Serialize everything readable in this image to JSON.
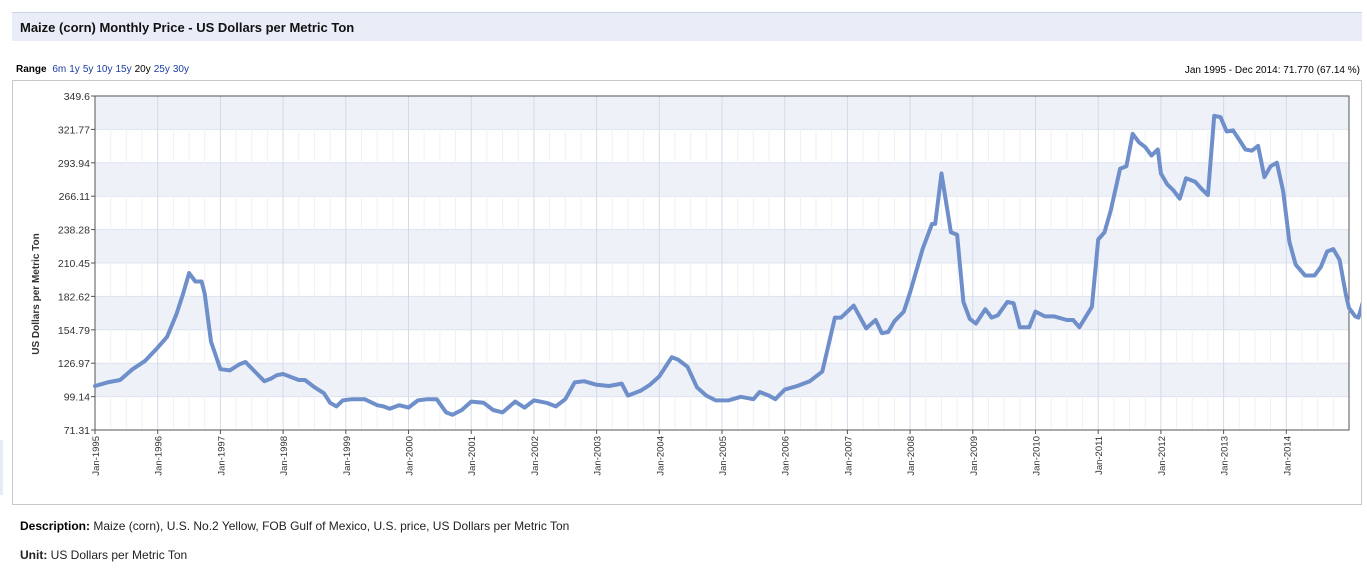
{
  "header": {
    "title": "Maize (corn) Monthly Price - US Dollars per Metric Ton"
  },
  "range": {
    "label": "Range",
    "options": [
      "6m",
      "1y",
      "5y",
      "10y",
      "15y",
      "20y",
      "25y",
      "30y"
    ],
    "selected": "20y"
  },
  "summary": "Jan 1995 - Dec 2014: 71.770 (67.14 %)",
  "colors": {
    "line": "#6f8fcb",
    "band": "#eef1f8",
    "accent_link": "#1a3fa3"
  },
  "chart_data": {
    "type": "line",
    "ylabel": "US Dollars per Metric Ton",
    "xlabel": "",
    "ylim": [
      71.31,
      349.6
    ],
    "xlim": [
      1995.0,
      2015.0
    ],
    "y_ticks": [
      "349.6",
      "321.77",
      "293.94",
      "266.11",
      "238.28",
      "210.45",
      "182.62",
      "154.79",
      "126.97",
      "99.14",
      "71.31"
    ],
    "x_ticks": [
      {
        "label": "Jan-1995",
        "x": 1995
      },
      {
        "label": "Jan-1996",
        "x": 1996
      },
      {
        "label": "Jan-1997",
        "x": 1997
      },
      {
        "label": "Jan-1998",
        "x": 1998
      },
      {
        "label": "Jan-1999",
        "x": 1999
      },
      {
        "label": "Jan-2000",
        "x": 2000
      },
      {
        "label": "Jan-2001",
        "x": 2001
      },
      {
        "label": "Jan-2002",
        "x": 2002
      },
      {
        "label": "Jan-2003",
        "x": 2003
      },
      {
        "label": "Jan-2004",
        "x": 2004
      },
      {
        "label": "Jan-2005",
        "x": 2005
      },
      {
        "label": "Jan-2006",
        "x": 2006
      },
      {
        "label": "Jan-2007",
        "x": 2007
      },
      {
        "label": "Jan-2008",
        "x": 2008
      },
      {
        "label": "Jan-2009",
        "x": 2009
      },
      {
        "label": "Jan-2010",
        "x": 2010
      },
      {
        "label": "Jan-2011",
        "x": 2011
      },
      {
        "label": "Jan-2012",
        "x": 2012
      },
      {
        "label": "Jan-2013",
        "x": 2013
      },
      {
        "label": "Jan-2014",
        "x": 2014
      }
    ],
    "grid": true,
    "series": [
      {
        "points": [
          [
            1995.0,
            108
          ],
          [
            1995.2,
            111
          ],
          [
            1995.4,
            113
          ],
          [
            1995.6,
            122
          ],
          [
            1995.8,
            129
          ],
          [
            1996.0,
            140
          ],
          [
            1996.15,
            149
          ],
          [
            1996.3,
            168
          ],
          [
            1996.4,
            184
          ],
          [
            1996.5,
            202
          ],
          [
            1996.6,
            195
          ],
          [
            1996.7,
            195
          ],
          [
            1996.75,
            185
          ],
          [
            1996.85,
            145
          ],
          [
            1997.0,
            122
          ],
          [
            1997.15,
            121
          ],
          [
            1997.3,
            126
          ],
          [
            1997.4,
            128
          ],
          [
            1997.55,
            120
          ],
          [
            1997.7,
            112
          ],
          [
            1997.8,
            114
          ],
          [
            1997.9,
            117
          ],
          [
            1998.0,
            118
          ],
          [
            1998.15,
            115
          ],
          [
            1998.25,
            113
          ],
          [
            1998.35,
            113
          ],
          [
            1998.5,
            107
          ],
          [
            1998.65,
            102
          ],
          [
            1998.75,
            94
          ],
          [
            1998.85,
            91
          ],
          [
            1998.95,
            96
          ],
          [
            1999.1,
            97
          ],
          [
            1999.3,
            97
          ],
          [
            1999.5,
            92
          ],
          [
            1999.6,
            91
          ],
          [
            1999.7,
            89
          ],
          [
            1999.85,
            92
          ],
          [
            2000.0,
            90
          ],
          [
            2000.15,
            96
          ],
          [
            2000.3,
            97
          ],
          [
            2000.45,
            97
          ],
          [
            2000.6,
            86
          ],
          [
            2000.7,
            84
          ],
          [
            2000.85,
            88
          ],
          [
            2001.0,
            95
          ],
          [
            2001.2,
            94
          ],
          [
            2001.35,
            88
          ],
          [
            2001.5,
            86
          ],
          [
            2001.7,
            95
          ],
          [
            2001.85,
            90
          ],
          [
            2002.0,
            96
          ],
          [
            2002.2,
            94
          ],
          [
            2002.35,
            91
          ],
          [
            2002.5,
            97
          ],
          [
            2002.65,
            111
          ],
          [
            2002.8,
            112
          ],
          [
            2003.0,
            109
          ],
          [
            2003.2,
            108
          ],
          [
            2003.4,
            110
          ],
          [
            2003.5,
            100
          ],
          [
            2003.7,
            104
          ],
          [
            2003.85,
            109
          ],
          [
            2004.0,
            116
          ],
          [
            2004.2,
            132
          ],
          [
            2004.3,
            130
          ],
          [
            2004.45,
            124
          ],
          [
            2004.6,
            107
          ],
          [
            2004.75,
            100
          ],
          [
            2004.9,
            96
          ],
          [
            2005.1,
            96
          ],
          [
            2005.3,
            99
          ],
          [
            2005.5,
            97
          ],
          [
            2005.6,
            103
          ],
          [
            2005.75,
            100
          ],
          [
            2005.85,
            97
          ],
          [
            2006.0,
            105
          ],
          [
            2006.2,
            108
          ],
          [
            2006.4,
            112
          ],
          [
            2006.6,
            120
          ],
          [
            2006.8,
            165
          ],
          [
            2006.9,
            165
          ],
          [
            2007.1,
            175
          ],
          [
            2007.3,
            156
          ],
          [
            2007.45,
            163
          ],
          [
            2007.55,
            152
          ],
          [
            2007.65,
            153
          ],
          [
            2007.75,
            162
          ],
          [
            2007.9,
            170
          ],
          [
            2008.0,
            186
          ],
          [
            2008.2,
            222
          ],
          [
            2008.35,
            243
          ],
          [
            2008.4,
            243
          ],
          [
            2008.5,
            285
          ],
          [
            2008.65,
            236
          ],
          [
            2008.75,
            234
          ],
          [
            2008.85,
            178
          ],
          [
            2008.95,
            164
          ],
          [
            2009.05,
            160
          ],
          [
            2009.2,
            172
          ],
          [
            2009.3,
            165
          ],
          [
            2009.4,
            167
          ],
          [
            2009.55,
            178
          ],
          [
            2009.65,
            177
          ],
          [
            2009.75,
            157
          ],
          [
            2009.9,
            157
          ],
          [
            2010.0,
            170
          ],
          [
            2010.15,
            166
          ],
          [
            2010.3,
            166
          ],
          [
            2010.5,
            163
          ],
          [
            2010.6,
            163
          ],
          [
            2010.7,
            157
          ],
          [
            2010.9,
            174
          ],
          [
            2011.0,
            230
          ],
          [
            2011.1,
            236
          ],
          [
            2011.2,
            254
          ],
          [
            2011.35,
            289
          ],
          [
            2011.45,
            291
          ],
          [
            2011.55,
            318
          ],
          [
            2011.65,
            311
          ],
          [
            2011.75,
            307
          ],
          [
            2011.85,
            300
          ],
          [
            2011.95,
            305
          ],
          [
            2012.0,
            285
          ],
          [
            2012.1,
            276
          ],
          [
            2012.2,
            271
          ],
          [
            2012.3,
            264
          ],
          [
            2012.4,
            281
          ],
          [
            2012.55,
            278
          ],
          [
            2012.65,
            272
          ],
          [
            2012.75,
            267
          ],
          [
            2012.85,
            333
          ],
          [
            2012.95,
            332
          ],
          [
            2013.05,
            320
          ],
          [
            2013.15,
            321
          ],
          [
            2013.25,
            313
          ],
          [
            2013.35,
            305
          ],
          [
            2013.45,
            304
          ],
          [
            2013.55,
            308
          ],
          [
            2013.65,
            282
          ],
          [
            2013.75,
            291
          ],
          [
            2013.85,
            294
          ],
          [
            2013.95,
            270
          ],
          [
            2014.05,
            228
          ],
          [
            2014.15,
            209
          ],
          [
            2014.3,
            200
          ],
          [
            2014.45,
            200
          ],
          [
            2014.55,
            207
          ],
          [
            2014.65,
            220
          ],
          [
            2014.75,
            222
          ],
          [
            2014.85,
            213
          ],
          [
            2014.95,
            184
          ],
          [
            2015.0,
            173
          ],
          [
            2015.1,
            166
          ],
          [
            2015.15,
            165
          ],
          [
            2015.25,
            183
          ]
        ]
      }
    ]
  },
  "footer": {
    "description_label": "Description:",
    "description_text": "Maize (corn), U.S. No.2 Yellow, FOB Gulf of Mexico, U.S. price, US Dollars per Metric Ton",
    "unit_label": "Unit:",
    "unit_text": "US Dollars per Metric Ton"
  }
}
